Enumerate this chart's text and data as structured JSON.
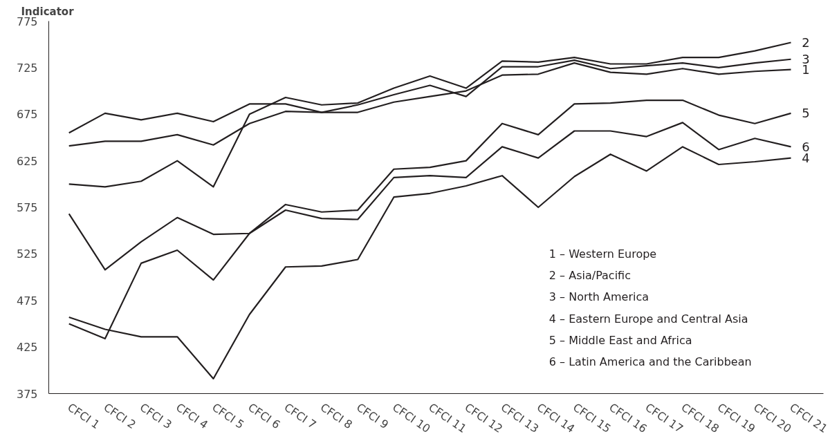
{
  "chart_data": {
    "type": "line",
    "ylabel": "Indicator",
    "categories": [
      "CFCI 1",
      "CFCI 2",
      "CFCI 3",
      "CFCI 4",
      "CFCI 5",
      "CFCI 6",
      "CFCI 7",
      "CFCI 8",
      "CFCI 9",
      "CFCI 10",
      "CFCI 11",
      "CFCI 12",
      "CFCI 13",
      "CFCI 14",
      "CFCI 15",
      "CFCI 16",
      "CFCI 17",
      "CFCI 18",
      "CFCI 19",
      "CFCI 20",
      "CFCI 21"
    ],
    "series": [
      {
        "name": "1",
        "color": "#231f20",
        "values": [
          641,
          646,
          646,
          653,
          642,
          665,
          678,
          677,
          677,
          688,
          694,
          700,
          717,
          718,
          730,
          720,
          718,
          724,
          718,
          721,
          723
        ]
      },
      {
        "name": "2",
        "color": "#231f20",
        "values": [
          600,
          597,
          603,
          625,
          597,
          675,
          693,
          685,
          687,
          703,
          716,
          703,
          732,
          731,
          736,
          729,
          729,
          736,
          736,
          743,
          752
        ]
      },
      {
        "name": "3",
        "color": "#231f20",
        "values": [
          655,
          676,
          669,
          676,
          667,
          686,
          686,
          677,
          685,
          696,
          706,
          694,
          726,
          726,
          733,
          724,
          727,
          730,
          725,
          730,
          734
        ]
      },
      {
        "name": "4",
        "color": "#231f20",
        "values": [
          457,
          444,
          436,
          436,
          391,
          460,
          511,
          512,
          519,
          586,
          590,
          598,
          609,
          575,
          608,
          632,
          614,
          640,
          621,
          624,
          628
        ]
      },
      {
        "name": "5",
        "color": "#231f20",
        "values": [
          450,
          434,
          515,
          529,
          497,
          547,
          578,
          570,
          572,
          616,
          618,
          625,
          665,
          653,
          686,
          687,
          690,
          690,
          674,
          665,
          676
        ]
      },
      {
        "name": "6",
        "color": "#231f20",
        "values": [
          568,
          508,
          538,
          564,
          546,
          547,
          572,
          563,
          562,
          607,
          609,
          607,
          640,
          628,
          657,
          657,
          651,
          666,
          637,
          649,
          640
        ]
      }
    ],
    "ylim": [
      375,
      775
    ],
    "yticks": [
      375,
      425,
      475,
      525,
      575,
      625,
      675,
      725,
      775
    ],
    "grid": false,
    "marker": "none",
    "line_style": "solid",
    "annotations": [
      "1 – Western Europe",
      "2 – Asia/Pacific",
      "3 – North America",
      "4 – Eastern Europe and Central Asia",
      "5 – Middle East and Africa",
      "6 – Latin America and the Caribbean"
    ]
  }
}
